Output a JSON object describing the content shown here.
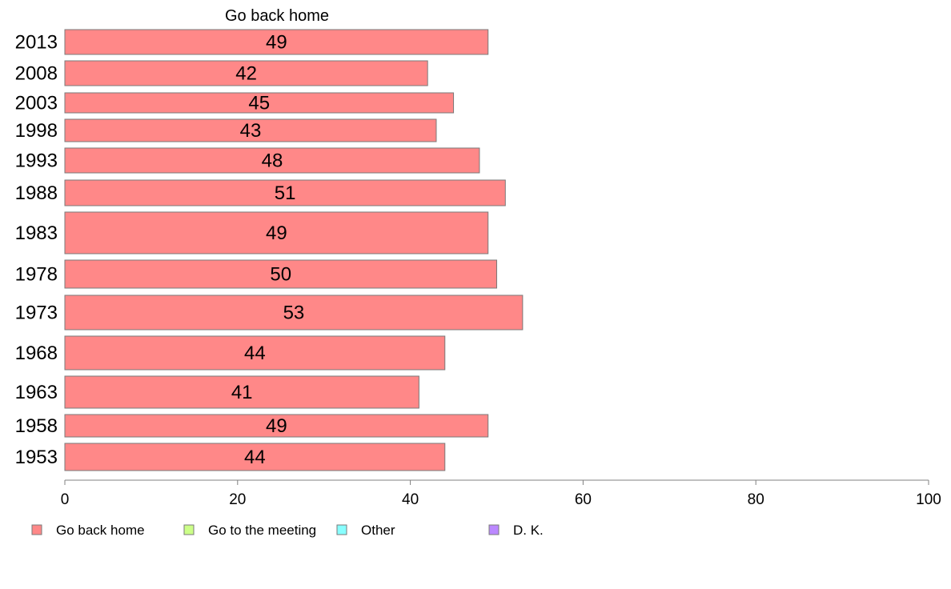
{
  "chart_data": {
    "type": "bar",
    "orientation": "horizontal",
    "title": "Go back home",
    "categories": [
      "2013",
      "2008",
      "2003",
      "1998",
      "1993",
      "1988",
      "1983",
      "1978",
      "1973",
      "1968",
      "1963",
      "1958",
      "1953"
    ],
    "series": [
      {
        "name": "Go back home",
        "color": "#ff8888",
        "values": [
          49,
          42,
          45,
          43,
          48,
          51,
          49,
          50,
          53,
          44,
          41,
          49,
          44
        ],
        "data_labels": [
          "49",
          "42",
          "45",
          "43",
          "48",
          "51",
          "49",
          "50",
          "53",
          "44",
          "41",
          "49",
          "44"
        ]
      }
    ],
    "xlim": [
      0,
      100
    ],
    "xticks": [
      0,
      20,
      40,
      60,
      80,
      100
    ],
    "xtick_labels": [
      "0",
      "20",
      "40",
      "60",
      "80",
      "100"
    ],
    "grid": false,
    "legend": {
      "placement": "bottom",
      "entries": [
        {
          "label": "Go back home",
          "color": "#ff8888"
        },
        {
          "label": "Go to the meeting",
          "color": "#ccff88"
        },
        {
          "label": "Other",
          "color": "#88ffff"
        },
        {
          "label": "D. K.",
          "color": "#bb88ff"
        }
      ]
    }
  }
}
